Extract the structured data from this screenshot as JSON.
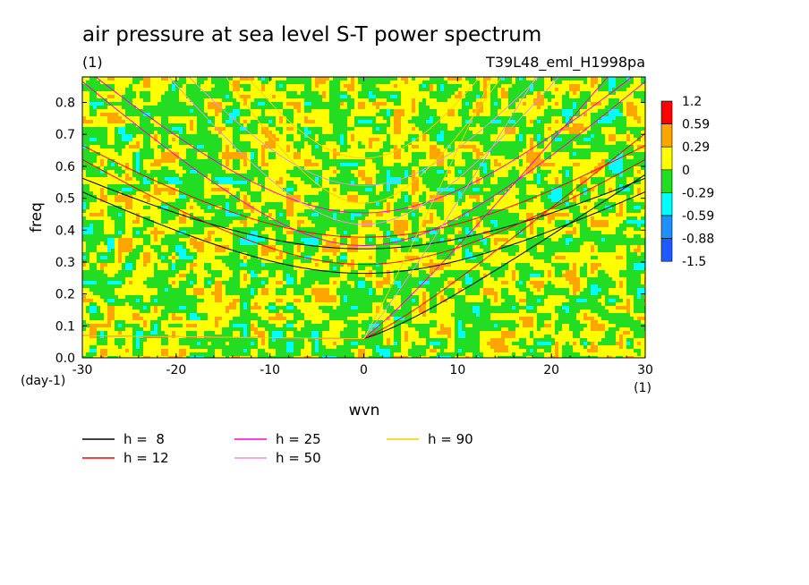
{
  "chart_data": {
    "type": "heatmap",
    "title": "air pressure at sea level S-T power spectrum",
    "title_units": "(1)",
    "run_label": "T39L48_eml_H1998pa",
    "xlabel": "wvn",
    "ylabel": "freq",
    "x_units": "(1)",
    "y_units": "(day-1)",
    "xlim": [
      -30,
      30
    ],
    "ylim": [
      0,
      0.88
    ],
    "x_ticks": [
      -30,
      -20,
      -10,
      0,
      10,
      20,
      30
    ],
    "x_tick_labels": [
      "-30",
      "-20",
      "-10",
      "0",
      "10",
      "20",
      "30"
    ],
    "y_ticks": [
      0.0,
      0.1,
      0.2,
      0.3,
      0.4,
      0.5,
      0.6,
      0.7,
      0.8
    ],
    "y_tick_labels": [
      "0.0",
      "0.1",
      "0.2",
      "0.3",
      "0.4",
      "0.5",
      "0.6",
      "0.7",
      "0.8"
    ],
    "colorbar": {
      "levels": [
        1.2,
        0.59,
        0.29,
        0,
        -0.29,
        -0.59,
        -0.88,
        -1.5
      ],
      "labels": [
        "1.2",
        "0.59",
        "0.29",
        "0",
        "-0.29",
        "-0.59",
        "-0.88",
        "-1.5"
      ],
      "colors": [
        "#ff0000",
        "#ffa500",
        "#ffff00",
        "#22dd22",
        "#00ffff",
        "#1e90ff",
        "#1e5aff"
      ]
    },
    "dispersion_curves": [
      {
        "name": "h =  8",
        "h": 8,
        "color": "#000000"
      },
      {
        "name": "h = 12",
        "h": 12,
        "color": "#ff0000"
      },
      {
        "name": "h = 25",
        "h": 25,
        "color": "#ff00cc"
      },
      {
        "name": "h = 50",
        "h": 50,
        "color": "#dd99dd"
      },
      {
        "name": "h = 90",
        "h": 90,
        "color": "#ffcc00"
      }
    ]
  }
}
